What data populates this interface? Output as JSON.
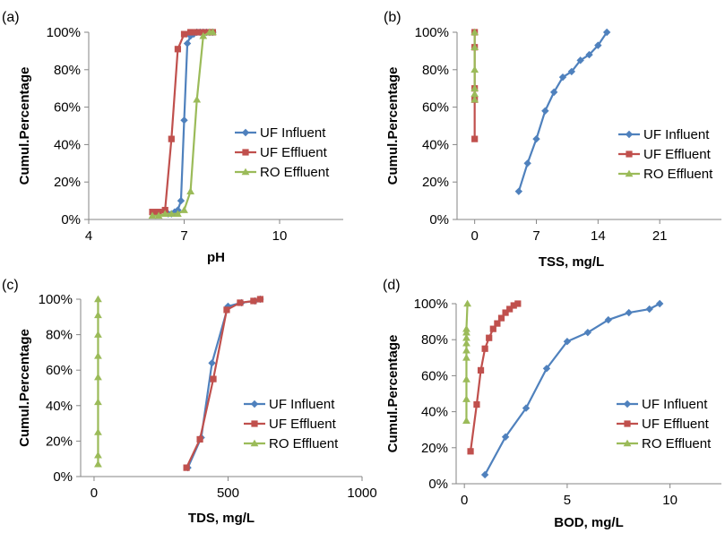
{
  "colors": {
    "uf_influent": "#4F81BD",
    "uf_effluent": "#C0504D",
    "ro_effluent": "#9BBB59",
    "axis": "#868686"
  },
  "chart_data": [
    {
      "panel_label": "(a)",
      "type": "line",
      "xlabel": "pH",
      "ylabel": "Cumul.Percentage",
      "xlim": [
        4,
        12
      ],
      "ylim": [
        0,
        100
      ],
      "xticks": [
        4,
        7,
        10
      ],
      "yticks": [
        0,
        20,
        40,
        60,
        80,
        100
      ],
      "ytick_labels": [
        "0%",
        "20%",
        "40%",
        "60%",
        "80%",
        "100%"
      ],
      "legend_position": "right",
      "series": [
        {
          "name": "UF Influent",
          "marker": "diamond",
          "color": "#4F81BD",
          "x": [
            6.5,
            6.6,
            6.7,
            6.8,
            6.9,
            7.0,
            7.1,
            7.2,
            7.3,
            7.4,
            7.5,
            7.6,
            7.7,
            7.8,
            7.9
          ],
          "y": [
            3,
            3,
            4,
            5,
            10,
            53,
            94,
            98,
            99,
            100,
            100,
            100,
            100,
            100,
            100
          ]
        },
        {
          "name": "UF Effluent",
          "marker": "square",
          "color": "#C0504D",
          "x": [
            6.0,
            6.2,
            6.4,
            6.6,
            6.8,
            7.0,
            7.2,
            7.4,
            7.6,
            7.8,
            7.9
          ],
          "y": [
            4,
            4,
            5,
            43,
            91,
            99,
            100,
            100,
            100,
            100,
            100
          ]
        },
        {
          "name": "RO Effluent",
          "marker": "triangle",
          "color": "#9BBB59",
          "x": [
            6.0,
            6.2,
            6.4,
            6.6,
            6.8,
            7.0,
            7.2,
            7.4,
            7.6,
            7.8,
            7.9
          ],
          "y": [
            2,
            2,
            3,
            3,
            3,
            5,
            15,
            64,
            98,
            100,
            100
          ]
        }
      ]
    },
    {
      "panel_label": "(b)",
      "type": "line",
      "xlabel": "TSS, mg/L",
      "ylabel": "Cumul.Percentage",
      "xlim": [
        -2,
        28
      ],
      "ylim": [
        0,
        100
      ],
      "xticks": [
        0,
        7,
        14,
        21
      ],
      "yticks": [
        0,
        20,
        40,
        60,
        80,
        100
      ],
      "ytick_labels": [
        "0%",
        "20%",
        "40%",
        "60%",
        "80%",
        "100%"
      ],
      "legend_position": "right",
      "series": [
        {
          "name": "UF Influent",
          "marker": "diamond",
          "color": "#4F81BD",
          "x": [
            5,
            6,
            7,
            8,
            9,
            10,
            11,
            12,
            13,
            14,
            15
          ],
          "y": [
            15,
            30,
            43,
            58,
            68,
            76,
            79,
            85,
            88,
            93,
            100
          ]
        },
        {
          "name": "UF Effluent",
          "marker": "square",
          "color": "#C0504D",
          "x": [
            0,
            0,
            0,
            0,
            0
          ],
          "y": [
            43,
            64,
            70,
            92,
            100
          ]
        },
        {
          "name": "RO Effluent",
          "marker": "triangle",
          "color": "#9BBB59",
          "x": [
            0,
            0,
            0,
            0,
            0,
            0
          ],
          "y": [
            64,
            67,
            70,
            80,
            92,
            100
          ]
        }
      ]
    },
    {
      "panel_label": "(c)",
      "type": "line",
      "xlabel": "TDS, mg/L",
      "ylabel": "Cumul.Percentage",
      "xlim": [
        -50,
        1000
      ],
      "ylim": [
        0,
        100
      ],
      "xticks": [
        0,
        500,
        1000
      ],
      "yticks": [
        0,
        20,
        40,
        60,
        80,
        100
      ],
      "ytick_labels": [
        "0%",
        "20%",
        "40%",
        "60%",
        "80%",
        "100%"
      ],
      "legend_position": "right",
      "series": [
        {
          "name": "UF Influent",
          "marker": "diamond",
          "color": "#4F81BD",
          "x": [
            350,
            400,
            440,
            500,
            550,
            600,
            620
          ],
          "y": [
            5,
            22,
            64,
            96,
            98,
            99,
            100
          ]
        },
        {
          "name": "UF Effluent",
          "marker": "square",
          "color": "#C0504D",
          "x": [
            345,
            395,
            445,
            495,
            545,
            595,
            620
          ],
          "y": [
            5,
            21,
            55,
            94,
            98,
            99,
            100
          ]
        },
        {
          "name": "RO Effluent",
          "marker": "triangle",
          "color": "#9BBB59",
          "x": [
            15,
            15,
            15,
            15,
            15,
            15,
            15,
            15,
            15
          ],
          "y": [
            7,
            12,
            25,
            42,
            56,
            68,
            80,
            91,
            100
          ]
        }
      ]
    },
    {
      "panel_label": "(d)",
      "type": "line",
      "xlabel": "BOD, mg/L",
      "ylabel": "Cumul.Percentage",
      "xlim": [
        -0.4,
        12.5
      ],
      "ylim": [
        0,
        100
      ],
      "xticks": [
        0,
        5,
        10
      ],
      "yticks": [
        0,
        20,
        40,
        60,
        80,
        100
      ],
      "ytick_labels": [
        "0%",
        "20%",
        "40%",
        "60%",
        "80%",
        "100%"
      ],
      "legend_position": "right",
      "series": [
        {
          "name": "UF Influent",
          "marker": "diamond",
          "color": "#4F81BD",
          "x": [
            1,
            2,
            3,
            4,
            5,
            6,
            7,
            8,
            9,
            9.5
          ],
          "y": [
            5,
            26,
            42,
            64,
            79,
            84,
            91,
            95,
            97,
            100
          ]
        },
        {
          "name": "UF Effluent",
          "marker": "square",
          "color": "#C0504D",
          "x": [
            0.3,
            0.6,
            0.8,
            1.0,
            1.2,
            1.4,
            1.6,
            1.8,
            2.0,
            2.2,
            2.4,
            2.6
          ],
          "y": [
            18,
            44,
            63,
            75,
            81,
            86,
            89,
            92,
            95,
            97,
            99,
            100
          ]
        },
        {
          "name": "RO Effluent",
          "marker": "triangle",
          "color": "#9BBB59",
          "x": [
            0.1,
            0.1,
            0.1,
            0.1,
            0.1,
            0.1,
            0.1,
            0.1,
            0.1,
            0.15
          ],
          "y": [
            35,
            47,
            58,
            70,
            74,
            78,
            81,
            84,
            86,
            100
          ]
        }
      ]
    }
  ]
}
